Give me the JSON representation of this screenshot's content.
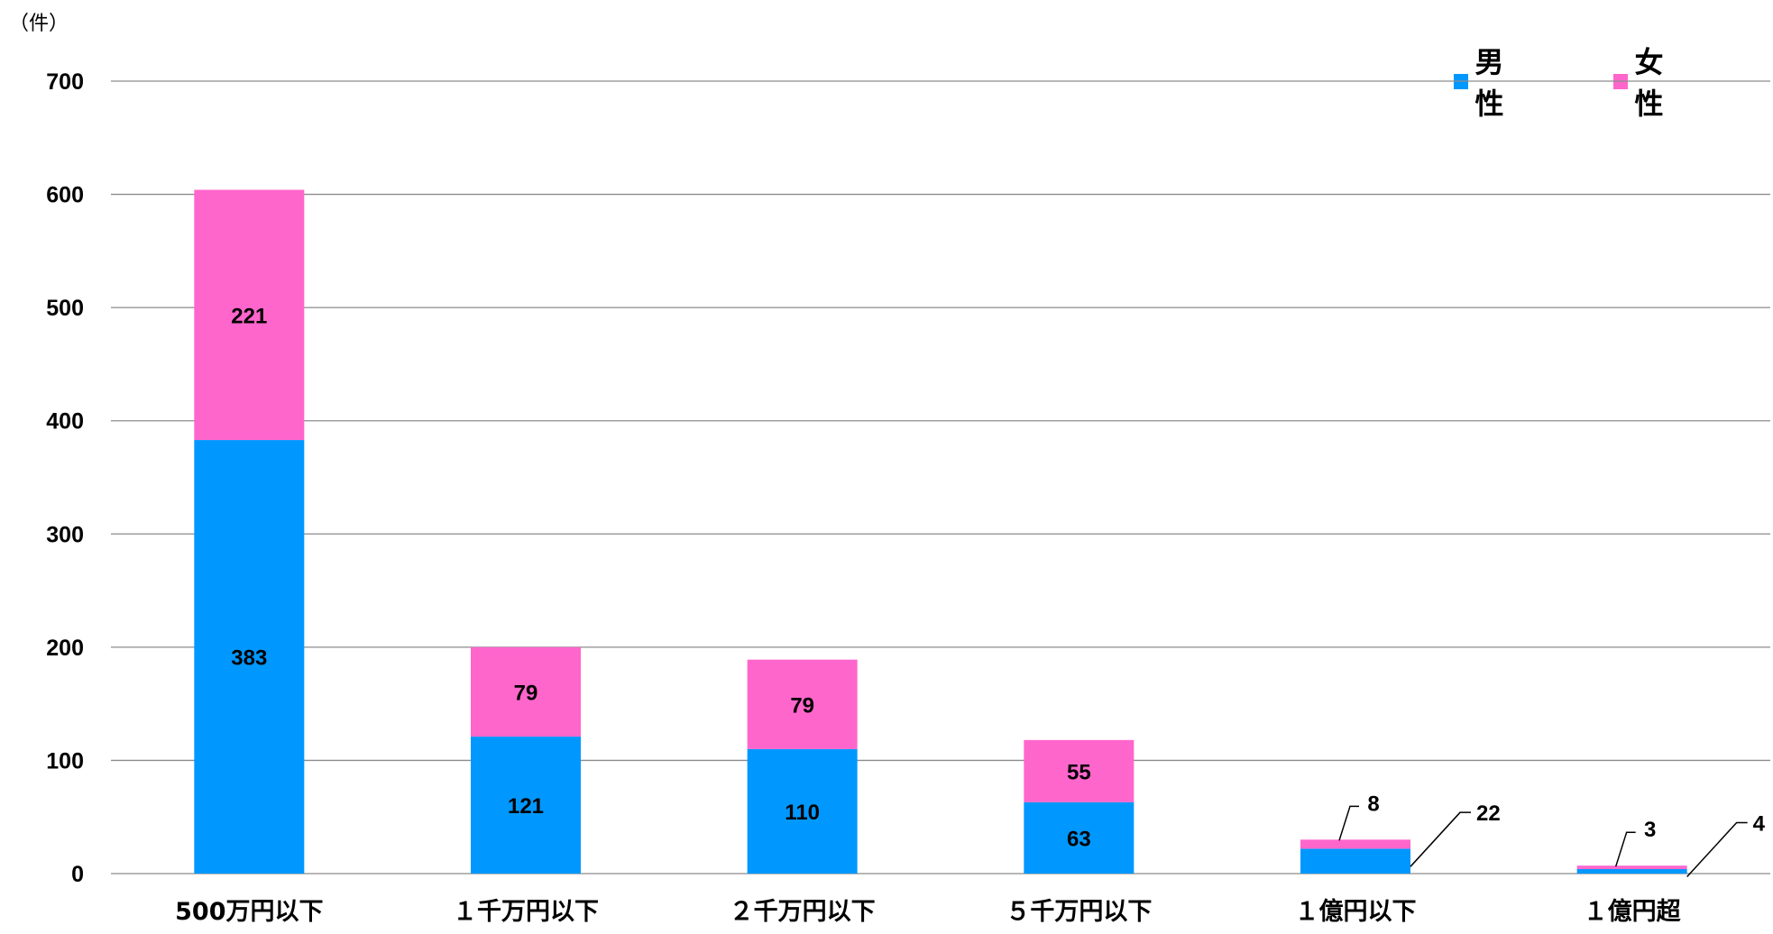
{
  "chart_data": {
    "type": "bar",
    "stacked": true,
    "unit_label": "（件）",
    "categories": [
      "500万円以下",
      "１千万円以下",
      "２千万円以下",
      "５千万円以下",
      "１億円以下",
      "１億円超"
    ],
    "series": [
      {
        "name": "男性",
        "color": "#0098FF",
        "values": [
          383,
          121,
          110,
          63,
          22,
          4
        ]
      },
      {
        "name": "女性",
        "color": "#FF66CC",
        "values": [
          221,
          79,
          79,
          55,
          8,
          3
        ]
      }
    ],
    "ylim": [
      0,
      700
    ],
    "yticks": [
      0,
      100,
      200,
      300,
      400,
      500,
      600,
      700
    ],
    "grid": true,
    "legend_position": "top-right"
  }
}
